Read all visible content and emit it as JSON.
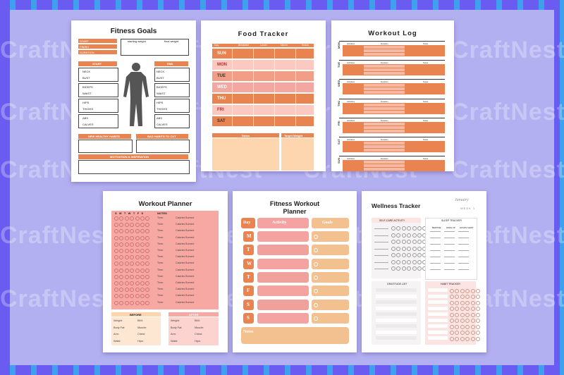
{
  "watermark": "CraftNest",
  "fitness_goals": {
    "title": "Fitness Goals",
    "top_labels": [
      "START",
      "FINISH",
      "DURATION"
    ],
    "weight_labels": [
      "starting weight",
      "final weight"
    ],
    "start_header": "START",
    "end_header": "END",
    "measure_labels": [
      "NECK",
      "BUST",
      "BICEPS",
      "WAIST",
      "HIPS",
      "THIGHS",
      "ABS",
      "CALVES"
    ],
    "habits_left": "NEW HEALTHY HABITS",
    "habits_right": "BAD HABITS TO CUT",
    "motivation": "MOTIVATION & INSPIRATION"
  },
  "food_tracker": {
    "title": "Food Tracker",
    "columns": [
      "Day",
      "Breakfast",
      "Lunch",
      "Dinner",
      "Snack"
    ],
    "days": [
      "SUN",
      "MON",
      "TUE",
      "WED",
      "THU",
      "FRI",
      "SAT"
    ],
    "notes_label": "Notes",
    "target_label": "Target Weight"
  },
  "workout_log": {
    "title": "Workout Log",
    "columns": [
      "Activities",
      "Duration",
      "Notes"
    ],
    "days": [
      "MON",
      "TUE",
      "WED",
      "THU",
      "FRI",
      "SAT",
      "SUN"
    ]
  },
  "workout_planner": {
    "title": "Workout Planner",
    "weekdays": [
      "S",
      "M",
      "T",
      "W",
      "T",
      "F",
      "S"
    ],
    "notes_header": "NOTES",
    "row_time": "Time:",
    "row_cal": "Calories Burned:",
    "row_count": 14,
    "before_header": "BEFORE",
    "after_header": "AFTER",
    "before_rows": [
      [
        "Weight:",
        "BMI:"
      ],
      [
        "Body Fat:",
        "Muscle:"
      ],
      [
        "Arm:",
        "Chest:"
      ],
      [
        "Waist:",
        "Hips:"
      ]
    ],
    "after_rows": [
      [
        "Weight:",
        "BMI:"
      ],
      [
        "Body Fat:",
        "Muscle:"
      ],
      [
        "Arm:",
        "Chest:"
      ],
      [
        "Waist:",
        "Hips:"
      ]
    ]
  },
  "fitness_workout_planner": {
    "title_line1": "Fitness Workout",
    "title_line2": "Planner",
    "day_header": "Day",
    "activity_header": "Activity",
    "goals_header": "Goals",
    "days": [
      "M",
      "T",
      "W",
      "T",
      "F",
      "S",
      "S"
    ],
    "notes_label": "Notes"
  },
  "wellness_tracker": {
    "title": "Wellness Tracker",
    "month": "January",
    "week": "WEEK 1",
    "self_care": "SELF-CARE ACTIVITY",
    "sleep": "SLEEP TRACKER",
    "sleep_cols": [
      "BEDTIME",
      "WAKE UP",
      "HOURS SLEPT"
    ],
    "gratitude": "GRATITUDE LIST",
    "habit": "HABIT TRACKER"
  },
  "colors": {
    "orange": "#e9834f",
    "pink": "#f4a3a0",
    "peach": "#fdd5ae",
    "frame_purple": "#6a5cf0",
    "background": "#b3b0f1"
  }
}
